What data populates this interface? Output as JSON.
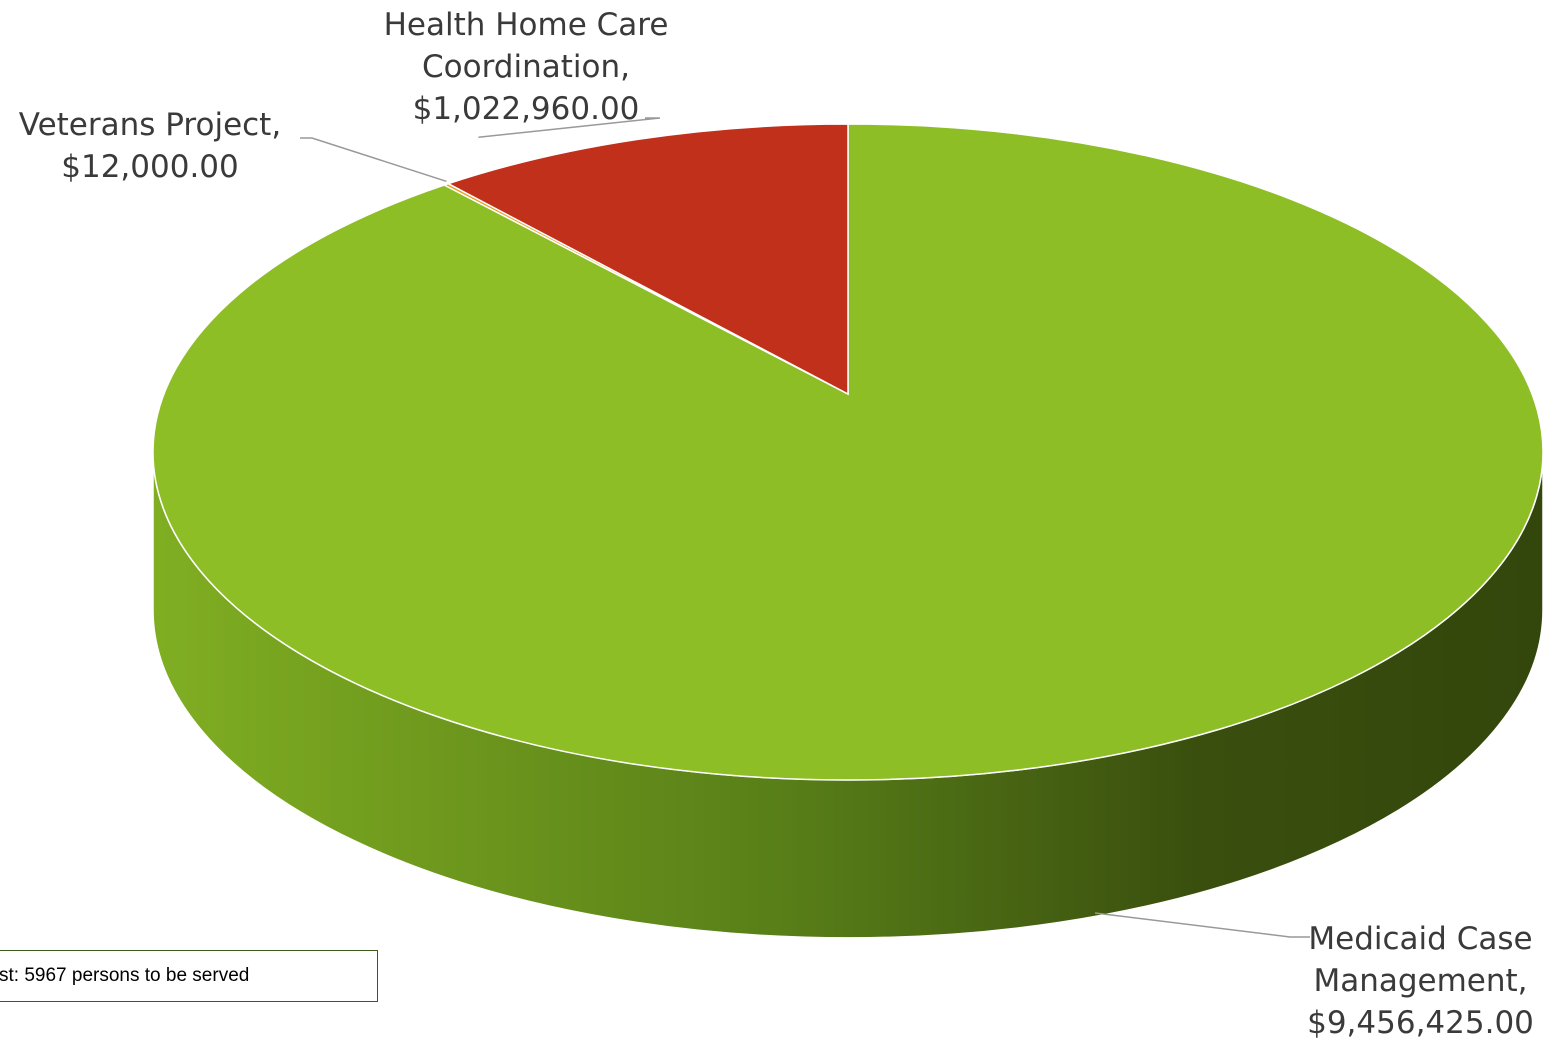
{
  "chart_data": {
    "type": "pie",
    "three_d": true,
    "values": [
      9456425,
      12000,
      1022960
    ],
    "value_labels": [
      "Medicaid Case Management, $9,456,425.00",
      "Veterans Project, $12,000.00",
      "Health Home Care Coordination, $1,022,960.00"
    ],
    "colors": [
      "#8ebe26",
      "#e8a020",
      "#c0301a"
    ],
    "annotation": "st: 5967 persons to be served"
  }
}
